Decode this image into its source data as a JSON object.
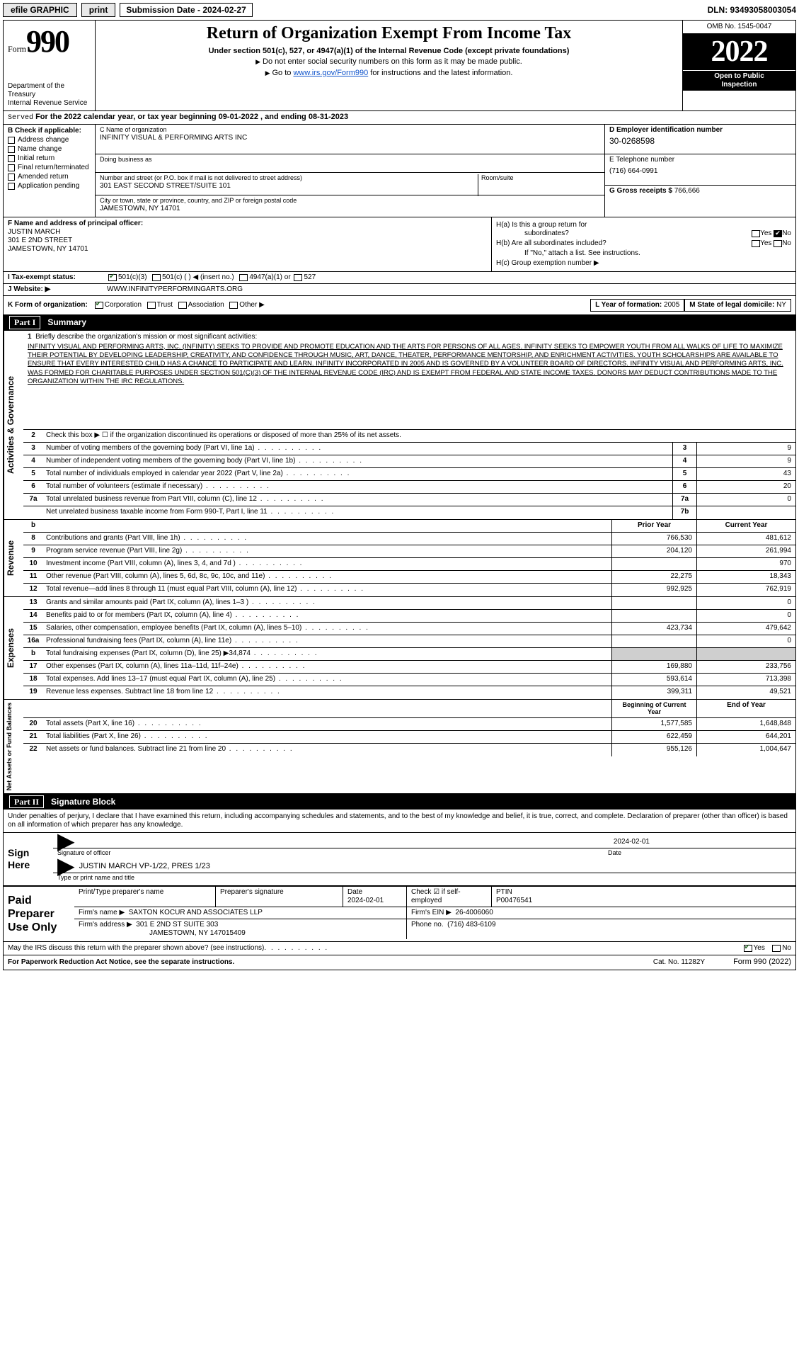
{
  "topbar": {
    "efile": "efile GRAPHIC",
    "print": "print",
    "sub_date_label": "Submission Date - 2024-02-27",
    "dln": "DLN: 93493058003054"
  },
  "header": {
    "form_word": "Form",
    "form_num": "990",
    "dept": "Department of the Treasury",
    "irs": "Internal Revenue Service",
    "title": "Return of Organization Exempt From Income Tax",
    "sub1": "Under section 501(c), 527, or 4947(a)(1) of the Internal Revenue Code (except private foundations)",
    "sub2": "Do not enter social security numbers on this form as it may be made public.",
    "sub3_pre": "Go to ",
    "sub3_link": "www.irs.gov/Form990",
    "sub3_post": " for instructions and the latest information.",
    "omb": "OMB No. 1545-0047",
    "year": "2022",
    "open1": "Open to Public",
    "open2": "Inspection"
  },
  "rowA": {
    "served": "Served",
    "text": "For the 2022 calendar year, or tax year beginning 09-01-2022    , and ending 08-31-2023"
  },
  "colB": {
    "hdr": "B Check if applicable:",
    "items": [
      "Address change",
      "Name change",
      "Initial return",
      "Final return/terminated",
      "Amended return",
      "Application pending"
    ]
  },
  "colC": {
    "name_lbl": "C Name of organization",
    "name": "INFINITY VISUAL & PERFORMING ARTS INC",
    "dba_lbl": "Doing business as",
    "dba": "",
    "addr_lbl": "Number and street (or P.O. box if mail is not delivered to street address)",
    "room_lbl": "Room/suite",
    "addr": "301 EAST SECOND STREET/SUITE 101",
    "city_lbl": "City or town, state or province, country, and ZIP or foreign postal code",
    "city": "JAMESTOWN, NY  14701"
  },
  "colD": {
    "d_lbl": "D Employer identification number",
    "ein": "30-0268598",
    "e_lbl": "E Telephone number",
    "phone": "(716) 664-0991",
    "g_lbl": "G Gross receipts $",
    "g_val": "766,666"
  },
  "F": {
    "lbl": "F  Name and address of principal officer:",
    "l1": "JUSTIN MARCH",
    "l2": "301 E 2ND STREET",
    "l3": "JAMESTOWN, NY  14701"
  },
  "H": {
    "a1": "H(a)  Is this a group return for",
    "a2": "subordinates?",
    "b1": "H(b)  Are all subordinates included?",
    "b2": "If \"No,\" attach a list. See instructions.",
    "c": "H(c)  Group exemption number ▶",
    "yes": "Yes",
    "no": "No"
  },
  "I": {
    "lbl": "I    Tax-exempt status:",
    "o1": "501(c)(3)",
    "o2": "501(c) (   ) ◀ (insert no.)",
    "o3": "4947(a)(1) or",
    "o4": "527"
  },
  "J": {
    "lbl": "J   Website: ▶",
    "val": "WWW.INFINITYPERFORMINGARTS.ORG"
  },
  "K": {
    "lbl": "K Form of organization:",
    "o1": "Corporation",
    "o2": "Trust",
    "o3": "Association",
    "o4": "Other ▶",
    "L_lbl": "L Year of formation:",
    "L_val": "2005",
    "M_lbl": "M State of legal domicile:",
    "M_val": "NY"
  },
  "part1_hdr": {
    "part": "Part I",
    "title": "Summary"
  },
  "mission": {
    "num": "1",
    "lbl": "Briefly describe the organization's mission or most significant activities:",
    "text": "INFINITY VISUAL AND PERFORMING ARTS, INC. (INFINITY) SEEKS TO PROVIDE AND PROMOTE EDUCATION AND THE ARTS FOR PERSONS OF ALL AGES. INFINITY SEEKS TO EMPOWER YOUTH FROM ALL WALKS OF LIFE TO MAXIMIZE THEIR POTENTIAL BY DEVELOPING LEADERSHIP, CREATIVITY, AND CONFIDENCE THROUGH MUSIC, ART, DANCE, THEATER, PERFORMANCE MENTORSHIP, AND ENRICHMENT ACTIVITIES. YOUTH SCHOLARSHIPS ARE AVAILABLE TO ENSURE THAT EVERY INTERESTED CHILD HAS A CHANCE TO PARTICIPATE AND LEARN. INFINITY INCORPORATED IN 2005 AND IS GOVERNED BY A VOLUNTEER BOARD OF DIRECTORS. INFINITY VISUAL AND PERFORMING ARTS, INC. WAS FORMED FOR CHARITABLE PURPOSES UNDER SECTION 501(C)(3) OF THE INTERNAL REVENUE CODE (IRC) AND IS EXEMPT FROM FEDERAL AND STATE INCOME TAXES. DONORS MAY DEDUCT CONTRIBUTIONS MADE TO THE ORGANIZATION WITHIN THE IRC REGULATIONS."
  },
  "gov_rows": [
    {
      "n": "2",
      "d": "Check this box ▶ ☐  if the organization discontinued its operations or disposed of more than 25% of its net assets.",
      "single": true
    },
    {
      "n": "3",
      "d": "Number of voting members of the governing body (Part VI, line 1a)",
      "c": "3",
      "v": "9"
    },
    {
      "n": "4",
      "d": "Number of independent voting members of the governing body (Part VI, line 1b)",
      "c": "4",
      "v": "9"
    },
    {
      "n": "5",
      "d": "Total number of individuals employed in calendar year 2022 (Part V, line 2a)",
      "c": "5",
      "v": "43"
    },
    {
      "n": "6",
      "d": "Total number of volunteers (estimate if necessary)",
      "c": "6",
      "v": "20"
    },
    {
      "n": "7a",
      "d": "Total unrelated business revenue from Part VIII, column (C), line 12",
      "c": "7a",
      "v": "0"
    },
    {
      "n": "",
      "d": "Net unrelated business taxable income from Form 990-T, Part I, line 11",
      "c": "7b",
      "v": ""
    }
  ],
  "gov_vtab": "Activities & Governance",
  "col_hdr1": "Prior Year",
  "col_hdr2": "Current Year",
  "rev_vtab": "Revenue",
  "rev_rows": [
    {
      "n": "8",
      "d": "Contributions and grants (Part VIII, line 1h)",
      "p": "766,530",
      "c": "481,612"
    },
    {
      "n": "9",
      "d": "Program service revenue (Part VIII, line 2g)",
      "p": "204,120",
      "c": "261,994"
    },
    {
      "n": "10",
      "d": "Investment income (Part VIII, column (A), lines 3, 4, and 7d )",
      "p": "",
      "c": "970"
    },
    {
      "n": "11",
      "d": "Other revenue (Part VIII, column (A), lines 5, 6d, 8c, 9c, 10c, and 11e)",
      "p": "22,275",
      "c": "18,343"
    },
    {
      "n": "12",
      "d": "Total revenue—add lines 8 through 11 (must equal Part VIII, column (A), line 12)",
      "p": "992,925",
      "c": "762,919"
    }
  ],
  "exp_vtab": "Expenses",
  "exp_rows": [
    {
      "n": "13",
      "d": "Grants and similar amounts paid (Part IX, column (A), lines 1–3 )",
      "p": "",
      "c": "0"
    },
    {
      "n": "14",
      "d": "Benefits paid to or for members (Part IX, column (A), line 4)",
      "p": "",
      "c": "0"
    },
    {
      "n": "15",
      "d": "Salaries, other compensation, employee benefits (Part IX, column (A), lines 5–10)",
      "p": "423,734",
      "c": "479,642"
    },
    {
      "n": "16a",
      "d": "Professional fundraising fees (Part IX, column (A), line 11e)",
      "p": "",
      "c": "0"
    },
    {
      "n": "b",
      "d": "Total fundraising expenses (Part IX, column (D), line 25) ▶34,874",
      "p": "__grey__",
      "c": "__grey__"
    },
    {
      "n": "17",
      "d": "Other expenses (Part IX, column (A), lines 11a–11d, 11f–24e)",
      "p": "169,880",
      "c": "233,756"
    },
    {
      "n": "18",
      "d": "Total expenses. Add lines 13–17 (must equal Part IX, column (A), line 25)",
      "p": "593,614",
      "c": "713,398"
    },
    {
      "n": "19",
      "d": "Revenue less expenses. Subtract line 18 from line 12",
      "p": "399,311",
      "c": "49,521"
    }
  ],
  "na_vtab": "Net Assets or Fund Balances",
  "na_hdr1": "Beginning of Current Year",
  "na_hdr2": "End of Year",
  "na_rows": [
    {
      "n": "20",
      "d": "Total assets (Part X, line 16)",
      "p": "1,577,585",
      "c": "1,648,848"
    },
    {
      "n": "21",
      "d": "Total liabilities (Part X, line 26)",
      "p": "622,459",
      "c": "644,201"
    },
    {
      "n": "22",
      "d": "Net assets or fund balances. Subtract line 21 from line 20",
      "p": "955,126",
      "c": "1,004,647"
    }
  ],
  "part2_hdr": {
    "part": "Part II",
    "title": "Signature Block"
  },
  "sig": {
    "decl": "Under penalties of perjury, I declare that I have examined this return, including accompanying schedules and statements, and to the best of my knowledge and belief, it is true, correct, and complete. Declaration of preparer (other than officer) is based on all information of which preparer has any knowledge.",
    "here": "Sign Here",
    "sig_lbl": "Signature of officer",
    "date_lbl": "Date",
    "date": "2024-02-01",
    "name": "JUSTIN MARCH  VP-1/22, PRES 1/23",
    "name_lbl": "Type or print name and title"
  },
  "paid": {
    "hdr": "Paid Preparer Use Only",
    "c1": "Print/Type preparer's name",
    "c2": "Preparer's signature",
    "c3": "Date",
    "c3v": "2024-02-01",
    "c4": "Check ☑ if self-employed",
    "c5": "PTIN",
    "c5v": "P00476541",
    "firm_lbl": "Firm's name    ▶",
    "firm": "SAXTON KOCUR AND ASSOCIATES LLP",
    "ein_lbl": "Firm's EIN ▶",
    "ein": "26-4006060",
    "addr_lbl": "Firm's address ▶",
    "addr1": "301 E 2ND ST SUITE 303",
    "addr2": "JAMESTOWN, NY  147015409",
    "ph_lbl": "Phone no.",
    "ph": "(716) 483-6109"
  },
  "mayirs": {
    "q": "May the IRS discuss this return with the preparer shown above? (see instructions)",
    "yes": "Yes",
    "no": "No"
  },
  "footer": {
    "pra": "For Paperwork Reduction Act Notice, see the separate instructions.",
    "cat": "Cat. No. 11282Y",
    "form": "Form 990 (2022)"
  },
  "style": {
    "bg": "#ffffff",
    "fg": "#000000",
    "link": "#1155cc",
    "grey": "#cfcfcf",
    "font_body": 11,
    "font_title": 24,
    "font_year": 42
  }
}
